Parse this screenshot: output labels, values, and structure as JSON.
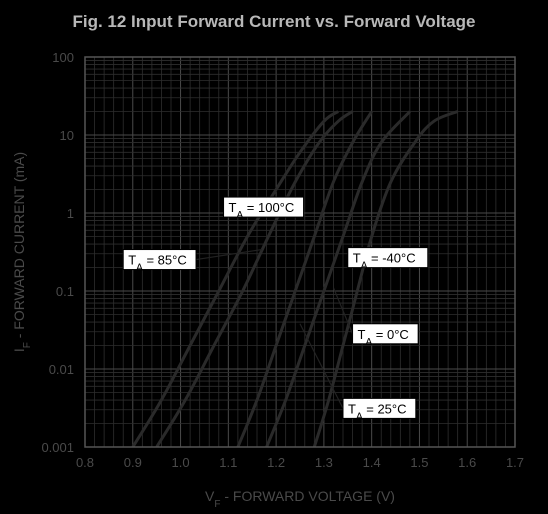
{
  "chart_data": {
    "type": "line",
    "title": "Fig. 12  Input Forward Current vs. Forward Voltage",
    "xlabel": {
      "main": "V",
      "sub": "F",
      "rest": " - FORWARD VOLTAGE (V)"
    },
    "ylabel": {
      "main": "I",
      "sub": "F",
      "rest": " - FORWARD CURRENT (mA)"
    },
    "x_scale": "linear",
    "y_scale": "log",
    "xlim": [
      0.8,
      1.7
    ],
    "ylim": [
      0.001,
      100
    ],
    "x_ticks": [
      "0.8",
      "0.9",
      "1.0",
      "1.1",
      "1.2",
      "1.3",
      "1.4",
      "1.5",
      "1.6",
      "1.7"
    ],
    "y_ticks": [
      "0.001",
      "0.01",
      "0.1",
      "1",
      "10",
      "100"
    ],
    "grid": true,
    "series": [
      {
        "name": "T_A = 100°C",
        "color": "#000000",
        "points": [
          [
            0.9,
            0.001
          ],
          [
            0.96,
            0.004
          ],
          [
            1.02,
            0.02
          ],
          [
            1.08,
            0.1
          ],
          [
            1.14,
            0.5
          ],
          [
            1.2,
            2
          ],
          [
            1.25,
            6
          ],
          [
            1.3,
            15
          ],
          [
            1.33,
            20
          ]
        ]
      },
      {
        "name": "T_A = 85°C",
        "color": "#000000",
        "points": [
          [
            0.95,
            0.001
          ],
          [
            1.01,
            0.004
          ],
          [
            1.07,
            0.02
          ],
          [
            1.13,
            0.1
          ],
          [
            1.19,
            0.6
          ],
          [
            1.24,
            2.5
          ],
          [
            1.29,
            8
          ],
          [
            1.33,
            15
          ],
          [
            1.36,
            20
          ]
        ]
      },
      {
        "name": "T_A = 25°C",
        "color": "#000000",
        "points": [
          [
            1.12,
            0.001
          ],
          [
            1.16,
            0.004
          ],
          [
            1.2,
            0.02
          ],
          [
            1.24,
            0.1
          ],
          [
            1.28,
            0.5
          ],
          [
            1.32,
            2.5
          ],
          [
            1.36,
            8
          ],
          [
            1.4,
            20
          ]
        ]
      },
      {
        "name": "T_A = 0°C",
        "color": "#000000",
        "points": [
          [
            1.18,
            0.001
          ],
          [
            1.22,
            0.004
          ],
          [
            1.26,
            0.02
          ],
          [
            1.3,
            0.1
          ],
          [
            1.34,
            0.5
          ],
          [
            1.38,
            2.5
          ],
          [
            1.42,
            8
          ],
          [
            1.48,
            20
          ]
        ]
      },
      {
        "name": "T_A = -40°C",
        "color": "#000000",
        "points": [
          [
            1.28,
            0.001
          ],
          [
            1.31,
            0.004
          ],
          [
            1.34,
            0.02
          ],
          [
            1.37,
            0.1
          ],
          [
            1.4,
            0.5
          ],
          [
            1.44,
            2.5
          ],
          [
            1.49,
            8
          ],
          [
            1.53,
            15
          ],
          [
            1.58,
            20
          ]
        ]
      }
    ],
    "annotations": [
      {
        "label": {
          "main": "T",
          "sub": "A",
          "rest": " = 100°C"
        },
        "box_at": [
          1.09,
          1.6
        ],
        "arrow_to": null
      },
      {
        "label": {
          "main": "T",
          "sub": "A",
          "rest": " = 85°C"
        },
        "box_at": [
          0.88,
          0.34
        ],
        "arrow_to": [
          1.17,
          0.34
        ]
      },
      {
        "label": {
          "main": "T",
          "sub": "A",
          "rest": " = -40°C"
        },
        "box_at": [
          1.35,
          0.36
        ],
        "arrow_to": null
      },
      {
        "label": {
          "main": "T",
          "sub": "A",
          "rest": " = 0°C"
        },
        "box_at": [
          1.36,
          0.038
        ],
        "arrow_to": [
          1.32,
          0.11
        ]
      },
      {
        "label": {
          "main": "T",
          "sub": "A",
          "rest": " = 25°C"
        },
        "box_at": [
          1.34,
          0.0042
        ],
        "arrow_to": [
          1.25,
          0.038
        ]
      }
    ]
  }
}
